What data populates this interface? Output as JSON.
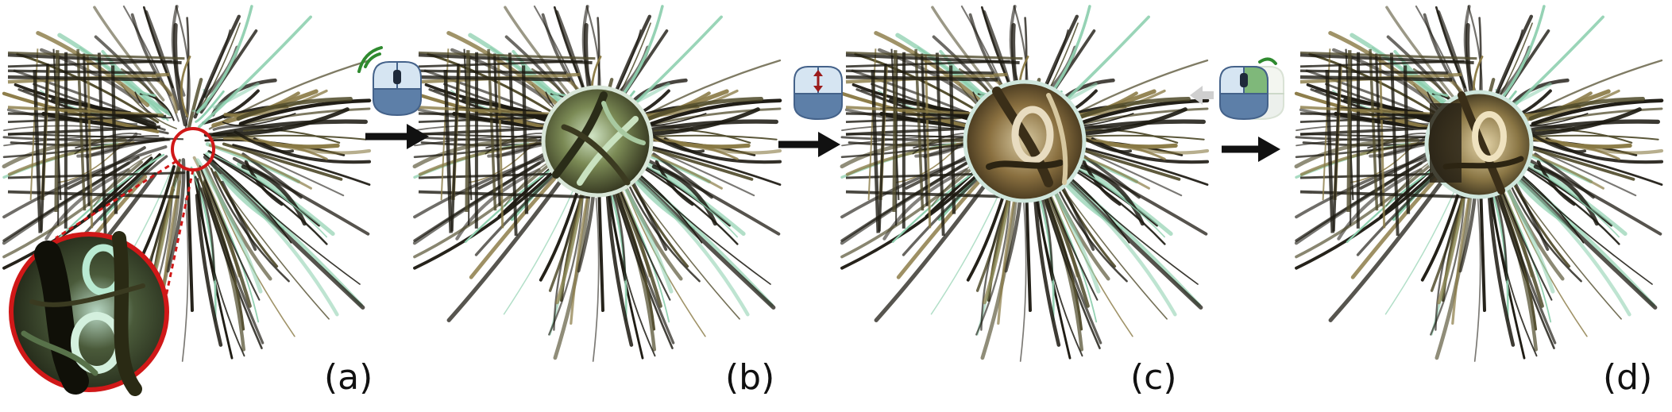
{
  "panels": [
    {
      "id": "a",
      "label": "(a)"
    },
    {
      "id": "b",
      "label": "(b)"
    },
    {
      "id": "c",
      "label": "(c)"
    },
    {
      "id": "d",
      "label": "(d)"
    }
  ],
  "interactions": [
    {
      "step": "a-to-b",
      "icon": "mouse-left-click-icon"
    },
    {
      "step": "b-to-c",
      "icon": "mouse-scroll-icon"
    },
    {
      "step": "c-to-d",
      "icon": "mouse-right-drag-icon"
    }
  ],
  "colors": {
    "fiber_dark": "#1d1a12",
    "fiber_olive": "#4f4a2a",
    "fiber_gold": "#8a7a45",
    "fiber_teal": "#8fd0b0",
    "zoom_callout": "#d01818",
    "mouse_body": "#5d7fa8",
    "mouse_top": "#cfe0ef",
    "click_signal": "#2f8a2f",
    "scroll_arrow": "#9b1b1b",
    "arrow": "#111111"
  }
}
